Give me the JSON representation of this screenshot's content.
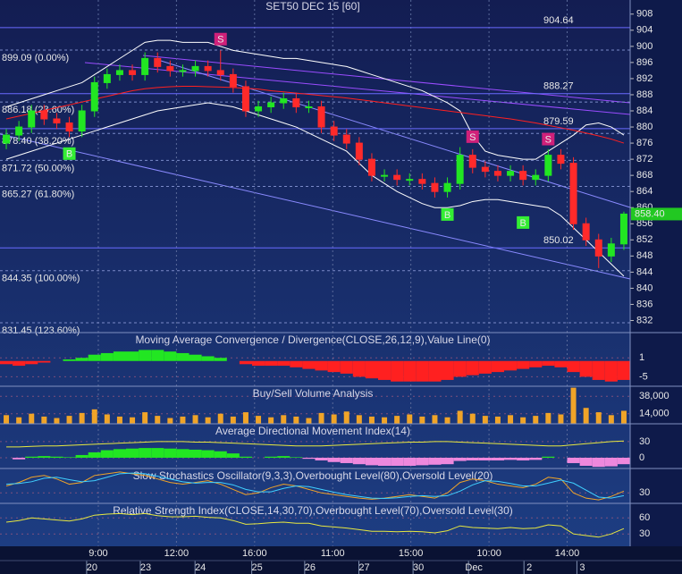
{
  "chart_data": [
    {
      "type": "candlestick",
      "title": "SET50 DEC 15  [60]",
      "x": [
        0,
        1,
        2,
        3,
        4,
        5,
        6,
        7,
        8,
        9,
        10,
        11,
        12,
        13,
        14,
        15,
        16,
        17,
        18,
        19,
        20,
        21,
        22,
        23,
        24,
        25,
        26,
        27,
        28,
        29,
        30,
        31,
        32,
        33,
        34,
        35,
        36,
        37,
        38,
        39,
        40,
        41,
        42,
        43,
        44,
        45,
        46,
        47,
        48,
        49
      ],
      "open": [
        876,
        878,
        880,
        884,
        882,
        881,
        879,
        884,
        891,
        893,
        894,
        893,
        897,
        895,
        894,
        894,
        895,
        894,
        893,
        890,
        884,
        885,
        886,
        887,
        885,
        885,
        880,
        878,
        876,
        872,
        868,
        868,
        867,
        867,
        866,
        864,
        866,
        873,
        870,
        869,
        868,
        869,
        867,
        868,
        873,
        871,
        856,
        852,
        848,
        851
      ],
      "high": [
        879.5,
        881.5,
        885.5,
        885.5,
        883.5,
        882.5,
        885.5,
        892.5,
        894.5,
        895.5,
        895.5,
        898.5,
        898.5,
        896.5,
        895.5,
        896.5,
        896.5,
        899,
        894.5,
        891.5,
        886.5,
        887.5,
        888.5,
        888.5,
        886.5,
        886.5,
        881.5,
        879.5,
        877.5,
        873.5,
        869.5,
        869.5,
        868.5,
        868.5,
        867.5,
        867.5,
        875,
        874.5,
        871.5,
        870.5,
        870.5,
        870.5,
        869.5,
        874.5,
        874.5,
        872.5,
        857.5,
        853.5,
        852.5,
        859
      ],
      "low": [
        874.5,
        876.5,
        878.5,
        880.5,
        879.5,
        877.5,
        877.5,
        882.5,
        889.5,
        891.5,
        891.5,
        891.5,
        893.5,
        892.5,
        892.5,
        892.5,
        892.5,
        891.5,
        888.5,
        882.5,
        882.5,
        883.5,
        884.5,
        883.5,
        883.5,
        878.5,
        876.5,
        874.5,
        870.5,
        866.5,
        866.5,
        865.5,
        865.5,
        864.5,
        862.5,
        862.5,
        864.5,
        868.5,
        867.5,
        866.5,
        866.5,
        865.5,
        865.5,
        866.5,
        869.5,
        854.5,
        850.5,
        845,
        846.5,
        849.5
      ],
      "close": [
        878,
        880,
        884,
        882,
        881,
        879,
        884,
        891,
        893,
        894,
        893,
        897,
        895,
        894,
        894,
        895,
        894,
        893,
        890,
        884,
        885,
        886,
        887,
        885,
        885,
        880,
        878,
        876,
        872,
        868,
        868,
        867,
        867,
        866,
        864,
        866,
        873,
        870,
        869,
        868,
        869,
        867,
        868,
        873,
        871,
        856,
        852,
        848,
        851,
        858.4
      ],
      "up_color": "#22e622",
      "down_color": "#ff2a2a",
      "series": [
        {
          "color": "#ffffff",
          "values": [
            885,
            886,
            887,
            888,
            889,
            890,
            891,
            893,
            895,
            897,
            899,
            901,
            901.5,
            901.5,
            901,
            901,
            901,
            900,
            899,
            898.5,
            898,
            897.5,
            897,
            897,
            896.5,
            896,
            895.5,
            895,
            894,
            893,
            892,
            891,
            890,
            889,
            887.5,
            886,
            884,
            878,
            874,
            873,
            872.5,
            872,
            872,
            874,
            876,
            878,
            880.5,
            881,
            880,
            878
          ]
        },
        {
          "color": "#ffffff",
          "values": [
            872,
            873,
            874,
            875,
            876,
            877,
            878,
            879,
            880,
            881,
            882,
            883,
            884,
            884.5,
            885,
            885.5,
            886,
            885.5,
            885,
            884,
            883,
            882,
            881,
            880,
            878.5,
            877,
            875.5,
            874,
            871,
            868,
            866,
            864,
            862.5,
            861,
            860,
            860,
            860.5,
            861.5,
            862,
            862,
            861.5,
            861,
            860.5,
            860,
            858,
            855,
            852,
            849,
            846,
            843
          ]
        },
        {
          "color": "#ff2020",
          "values": [
            882,
            882.7,
            883.4,
            884.1,
            884.8,
            885.5,
            886.2,
            886.9,
            887.6,
            888.3,
            889,
            889.5,
            889.8,
            890,
            890.1,
            890.1,
            890,
            889.9,
            889.8,
            889.6,
            889.4,
            889,
            888.7,
            888.4,
            888.1,
            887.8,
            887.5,
            887.2,
            886.8,
            886.4,
            886,
            885.6,
            885.2,
            884.8,
            884.4,
            884,
            883.6,
            883.2,
            882.8,
            882.4,
            882,
            881.5,
            881,
            880.4,
            879.8,
            879.2,
            878.5,
            877.8,
            877,
            876
          ]
        }
      ],
      "levels": [
        {
          "value": 904.64,
          "label": "904.64"
        },
        {
          "value": 888.27,
          "label": "888.27"
        },
        {
          "value": 879.59,
          "label": "879.59"
        },
        {
          "value": 850.02,
          "label": "850.02"
        }
      ],
      "fib": [
        {
          "value": 899.09,
          "label": "899.09 (0.00%)"
        },
        {
          "value": 886.18,
          "label": "886.18 (23.60%)"
        },
        {
          "value": 878.4,
          "label": "878.40 (38.20%)"
        },
        {
          "value": 871.72,
          "label": "871.72 (50.00%)"
        },
        {
          "value": 865.27,
          "label": "865.27 (61.80%)"
        },
        {
          "value": 844.35,
          "label": "844.35 (100.00%)"
        },
        {
          "value": 831.45,
          "label": "831.45 (123.60%)"
        }
      ],
      "signals": [
        {
          "label": "B",
          "x": 5,
          "value": 873.4,
          "color": "#33ee33"
        },
        {
          "label": "S",
          "x": 17,
          "value": 901.8,
          "color": "#d0207a"
        },
        {
          "label": "B",
          "x": 35,
          "value": 858.3,
          "color": "#33ee33"
        },
        {
          "label": "S",
          "x": 37,
          "value": 877.6,
          "color": "#d0207a"
        },
        {
          "label": "B",
          "x": 41,
          "value": 856.3,
          "color": "#33ee33"
        },
        {
          "label": "S",
          "x": 43,
          "value": 877.0,
          "color": "#d0207a"
        }
      ],
      "last": {
        "value": 858.4,
        "label": "858.40"
      },
      "ylim": [
        829,
        911.5
      ],
      "yticks": [
        908,
        904,
        900,
        896,
        892,
        888,
        884,
        880,
        876,
        872,
        868,
        864,
        860,
        856,
        852,
        848,
        844,
        840,
        836,
        832
      ],
      "xlim": [
        -0.5,
        49.5
      ],
      "xticks": [
        {
          "value": 7.3,
          "label": "9:00"
        },
        {
          "value": 13.5,
          "label": "12:00"
        },
        {
          "value": 19.7,
          "label": "16:00"
        },
        {
          "value": 25.9,
          "label": "11:00"
        },
        {
          "value": 32.1,
          "label": "15:00"
        },
        {
          "value": 38.3,
          "label": "10:00"
        },
        {
          "value": 44.5,
          "label": "14:00"
        }
      ],
      "date_ticks": [
        {
          "value": 6.8,
          "label": "20"
        },
        {
          "value": 11.06,
          "label": "23"
        },
        {
          "value": 15.4,
          "label": "24"
        },
        {
          "value": 19.9,
          "label": "25"
        },
        {
          "value": 24.1,
          "label": "26"
        },
        {
          "value": 28.4,
          "label": "27"
        },
        {
          "value": 32.7,
          "label": "30"
        },
        {
          "value": 37.1,
          "label": "Dec"
        },
        {
          "value": 41.5,
          "label": "2"
        },
        {
          "value": 45.7,
          "label": "3"
        }
      ]
    },
    {
      "type": "combo",
      "title": "Moving Average Convergence / Divergence(CLOSE,26,12,9),Value Line(0)",
      "ylim": [
        -8,
        9
      ],
      "yticks": [
        1,
        -5
      ],
      "series": [
        {
          "type": "bar",
          "color": "#22e622",
          "negative_color": "#ff2020",
          "values": [
            -1,
            -1.5,
            -1,
            -0.5,
            0,
            0.5,
            1,
            2,
            2.5,
            3,
            3,
            3.5,
            3.5,
            3,
            2.5,
            2,
            1.5,
            1,
            0,
            -1,
            -1.5,
            -1.5,
            -1.5,
            -2,
            -2.5,
            -3,
            -3.5,
            -4,
            -5,
            -5.5,
            -6,
            -6.5,
            -6.5,
            -6.5,
            -6.5,
            -6,
            -5,
            -4.5,
            -4,
            -3.5,
            -3,
            -2.5,
            -2,
            -1.5,
            -2,
            -3.5,
            -5,
            -6,
            -6.5,
            -6
          ]
        }
      ]
    },
    {
      "type": "combo",
      "title": "Buy/Sell Volume Analysis",
      "ylim": [
        0,
        52000
      ],
      "yticks": [
        {
          "value": 38000,
          "label": "38,000"
        },
        {
          "value": 14000,
          "label": "14,000"
        }
      ],
      "series": [
        {
          "type": "bar",
          "color": "#f0a428",
          "values": [
            12000,
            9000,
            14000,
            10000,
            8000,
            11000,
            15000,
            20000,
            13000,
            10000,
            9000,
            16000,
            11000,
            8000,
            10000,
            12000,
            9000,
            14000,
            10000,
            16000,
            11000,
            9000,
            12000,
            10000,
            8000,
            15000,
            13000,
            17000,
            12000,
            10000,
            9000,
            11000,
            13000,
            10000,
            12000,
            9000,
            18000,
            14000,
            11000,
            10000,
            12000,
            9000,
            11000,
            15000,
            13000,
            50000,
            22000,
            16000,
            12000,
            18000
          ]
        }
      ]
    },
    {
      "type": "combo",
      "title": "Average Directional Movement Index(14)",
      "ylim": [
        -20,
        63
      ],
      "yticks": [
        30,
        0
      ],
      "series": [
        {
          "type": "bar",
          "color": "#22e622",
          "negative_color": "#ee88dd",
          "values": [
            0,
            -3,
            2,
            3,
            2,
            1,
            5,
            10,
            14,
            16,
            17,
            18,
            18,
            17,
            16,
            15,
            14,
            12,
            8,
            2,
            0,
            2,
            3,
            1,
            -2,
            -5,
            -8,
            -10,
            -12,
            -14,
            -15,
            -15,
            -15,
            -14,
            -13,
            -12,
            -6,
            -5,
            -5,
            -5,
            -4,
            -5,
            -4,
            2,
            0,
            -10,
            -15,
            -17,
            -16,
            -12
          ]
        },
        {
          "type": "line",
          "color": "#e8e840",
          "values": [
            20,
            20,
            21,
            22,
            22,
            23,
            24,
            25,
            26,
            27,
            28,
            29,
            30,
            30,
            30,
            29,
            29,
            28,
            27,
            26,
            25,
            24,
            23,
            22,
            22,
            22,
            23,
            24,
            25,
            26,
            27,
            28,
            29,
            29,
            30,
            30,
            29,
            28,
            27,
            26,
            25,
            24,
            23,
            22,
            22,
            24,
            26,
            28,
            30,
            31
          ]
        }
      ]
    },
    {
      "type": "combo",
      "title": "Slow Stochastics Oscillator(9,3,3),Overbought Level(80),Oversold Level(20)",
      "ylim": [
        0,
        100
      ],
      "yticks": [
        30
      ],
      "series": [
        {
          "type": "line",
          "color": "#f0a428",
          "values": [
            50,
            60,
            75,
            80,
            70,
            55,
            60,
            80,
            85,
            90,
            85,
            80,
            70,
            60,
            55,
            60,
            65,
            55,
            40,
            25,
            30,
            45,
            55,
            50,
            40,
            30,
            25,
            20,
            15,
            12,
            15,
            20,
            25,
            20,
            15,
            30,
            60,
            70,
            65,
            55,
            50,
            45,
            55,
            75,
            70,
            30,
            15,
            10,
            20,
            35
          ]
        },
        {
          "type": "line",
          "color": "#40d0ff",
          "values": [
            55,
            57,
            62,
            72,
            75,
            68,
            62,
            65,
            75,
            85,
            87,
            85,
            78,
            70,
            62,
            58,
            60,
            60,
            53,
            40,
            33,
            33,
            43,
            50,
            48,
            40,
            32,
            25,
            20,
            15,
            14,
            16,
            20,
            22,
            20,
            22,
            35,
            53,
            65,
            63,
            57,
            50,
            50,
            58,
            67,
            58,
            38,
            18,
            15,
            22
          ]
        }
      ]
    },
    {
      "type": "combo",
      "title": "Relative Strength Index(CLOSE,14,30,70),Overbought Level(70),Oversold Level(30)",
      "ylim": [
        7,
        87
      ],
      "yticks": [
        60,
        30
      ],
      "series": [
        {
          "type": "line",
          "color": "#e8e840",
          "values": [
            52,
            55,
            60,
            58,
            56,
            54,
            58,
            65,
            67,
            68,
            66,
            68,
            64,
            62,
            62,
            63,
            61,
            60,
            55,
            48,
            49,
            51,
            52,
            50,
            50,
            45,
            43,
            41,
            38,
            35,
            35,
            34,
            35,
            34,
            32,
            36,
            45,
            42,
            41,
            40,
            42,
            40,
            41,
            47,
            45,
            30,
            27,
            24,
            30,
            40
          ]
        }
      ]
    }
  ]
}
